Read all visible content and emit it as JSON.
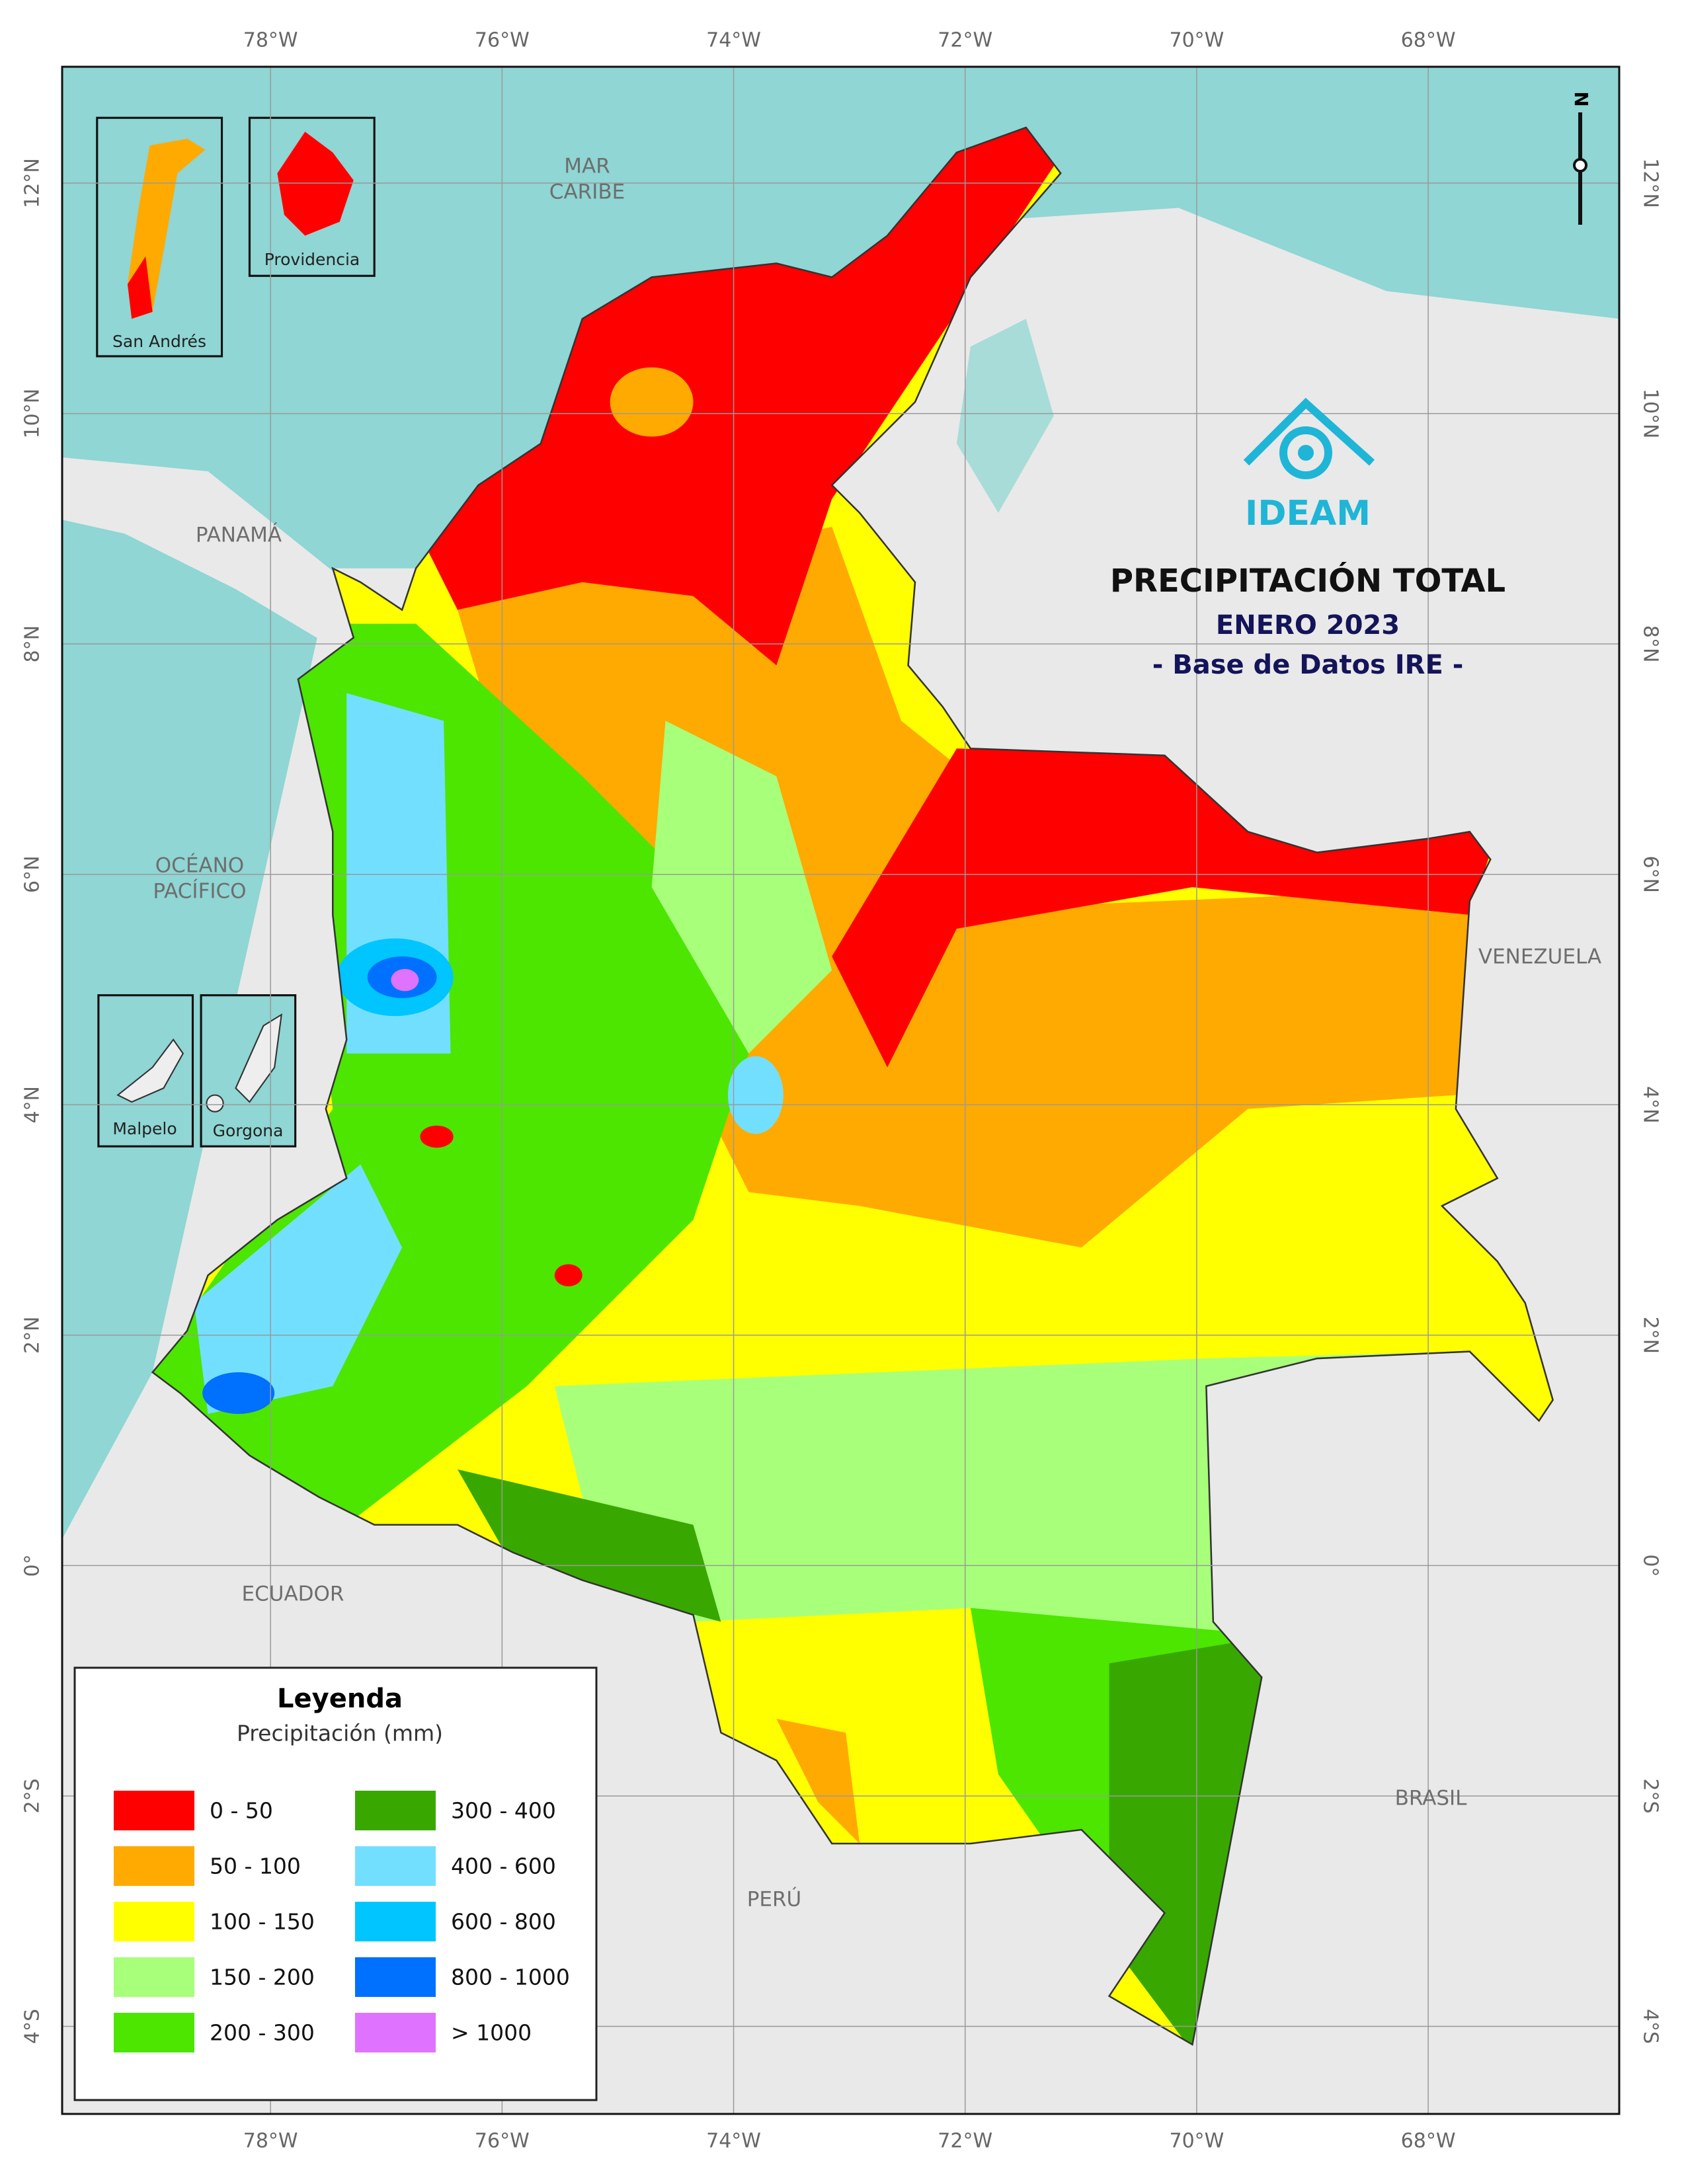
{
  "map": {
    "title": "PRECIPITACIÓN TOTAL",
    "subtitle": "ENERO 2023",
    "source": "- Base de Datos IRE -",
    "logo": "IDEAM",
    "north": "N",
    "lonlim": [
      -79.8,
      -66.35
    ],
    "latlim": [
      -4.76,
      13.01
    ],
    "lon_ticks": [
      {
        "value": -78,
        "label": "78°W"
      },
      {
        "value": -76,
        "label": "76°W"
      },
      {
        "value": -74,
        "label": "74°W"
      },
      {
        "value": -72,
        "label": "72°W"
      },
      {
        "value": -70,
        "label": "70°W"
      },
      {
        "value": -68,
        "label": "68°W"
      }
    ],
    "lat_ticks": [
      {
        "value": 12,
        "label": "12°N"
      },
      {
        "value": 10,
        "label": "10°N"
      },
      {
        "value": 8,
        "label": "8°N"
      },
      {
        "value": 6,
        "label": "6°N"
      },
      {
        "value": 4,
        "label": "4°N"
      },
      {
        "value": 2,
        "label": "2°N"
      },
      {
        "value": 0,
        "label": "0°"
      },
      {
        "value": -2,
        "label": "2°S"
      },
      {
        "value": -4,
        "label": "4°S"
      }
    ],
    "places": {
      "mar_caribe": [
        "MAR",
        "CARIBE"
      ],
      "panama": "PANAMÁ",
      "oceano_pacifico": [
        "OCÉANO",
        "PACÍFICO"
      ],
      "venezuela": "VENEZUELA",
      "ecuador": "ECUADOR",
      "peru": "PERÚ",
      "brasil": "BRASIL"
    },
    "insets": [
      "San Andrés",
      "Providencia",
      "Malpelo",
      "Gorgona"
    ],
    "legend": {
      "title": "Leyenda",
      "subtitle": "Precipitación (mm)",
      "items": [
        {
          "label": "0 - 50",
          "color": "#ff0000"
        },
        {
          "label": "50 - 100",
          "color": "#ffaa00"
        },
        {
          "label": "100 - 150",
          "color": "#ffff00"
        },
        {
          "label": "150 - 200",
          "color": "#a8ff7a"
        },
        {
          "label": "200 - 300",
          "color": "#4ce600"
        },
        {
          "label": "300 - 400",
          "color": "#38a800"
        },
        {
          "label": "400 - 600",
          "color": "#73dfff"
        },
        {
          "label": "600 - 800",
          "color": "#00c5ff"
        },
        {
          "label": "800 - 1000",
          "color": "#0070ff"
        },
        {
          "label": "> 1000",
          "color": "#df73ff"
        }
      ]
    }
  }
}
